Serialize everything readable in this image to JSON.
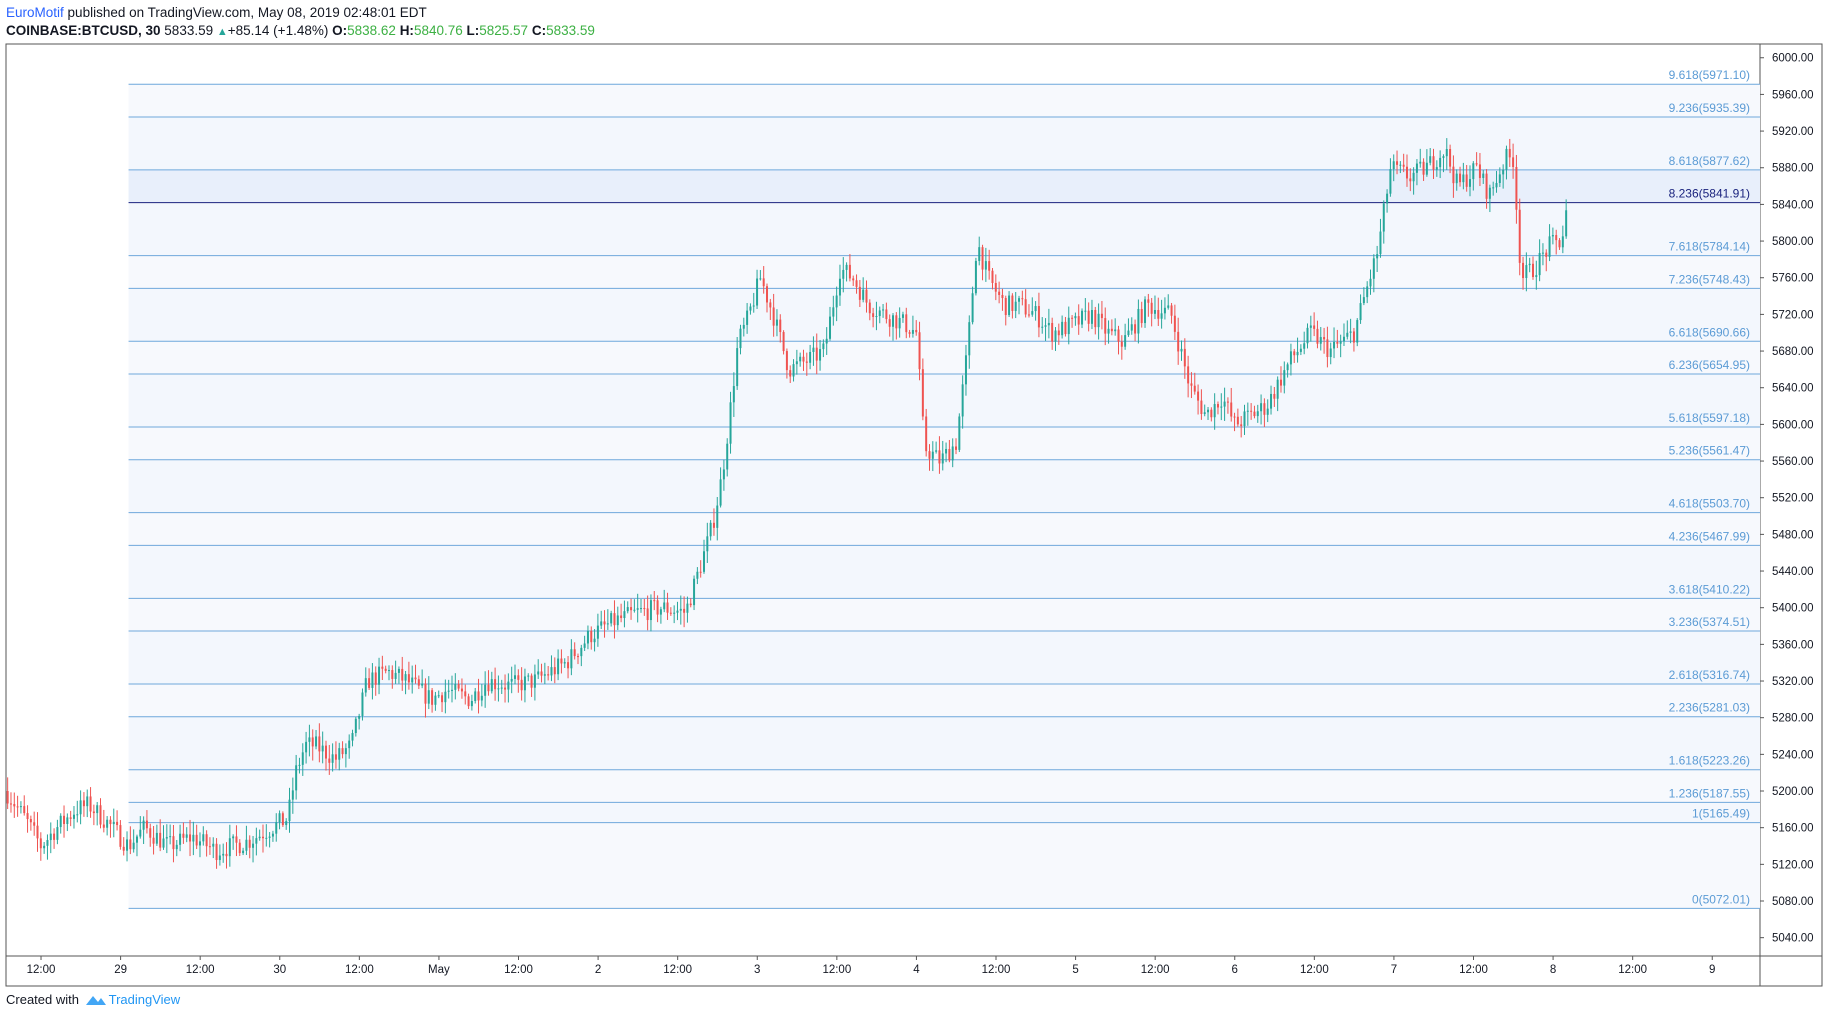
{
  "header": {
    "author": "EuroMotif",
    "published": "published on TradingView.com, May 08, 2019 02:48:01 EDT",
    "symbol": "COINBASE:BTCUSD, 30",
    "last": "5833.59",
    "change": "+85.14 (+1.48%)",
    "o_label": "O:",
    "o_value": "5838.62",
    "h_label": "H:",
    "h_value": "5840.76",
    "l_label": "L:",
    "l_value": "5825.57",
    "c_label": "C:",
    "c_value": "5833.59"
  },
  "footer": {
    "created_with": "Created with",
    "brand": "TradingView"
  },
  "colors": {
    "up": "#26a69a",
    "down": "#ef5350",
    "fib_line": "#6fa8dc",
    "fib_label": "#5b9bd5",
    "highlight": "#1a237e",
    "axis": "#131722"
  },
  "chart_data": {
    "type": "candlestick",
    "y_ticks": [
      5040,
      5080,
      5120,
      5160,
      5200,
      5240,
      5280,
      5320,
      5360,
      5400,
      5440,
      5480,
      5520,
      5560,
      5600,
      5640,
      5680,
      5720,
      5760,
      5800,
      5840,
      5880,
      5920,
      5960,
      6000
    ],
    "y_tick_labels": [
      "5040.00",
      "5080.00",
      "5120.00",
      "5160.00",
      "5200.00",
      "5240.00",
      "5280.00",
      "5320.00",
      "5360.00",
      "5400.00",
      "5440.00",
      "5480.00",
      "5520.00",
      "5560.00",
      "5600.00",
      "5640.00",
      "5680.00",
      "5720.00",
      "5760.00",
      "5800.00",
      "5840.00",
      "5880.00",
      "5920.00",
      "5960.00",
      "6000.00"
    ],
    "ylim": [
      5020,
      6015
    ],
    "x_ticks": [
      {
        "label": "12:00",
        "t": 0.5
      },
      {
        "label": "29",
        "t": 1.0
      },
      {
        "label": "12:00",
        "t": 1.5
      },
      {
        "label": "30",
        "t": 2.0
      },
      {
        "label": "12:00",
        "t": 2.5
      },
      {
        "label": "May",
        "t": 3.0
      },
      {
        "label": "12:00",
        "t": 3.5
      },
      {
        "label": "2",
        "t": 4.0
      },
      {
        "label": "12:00",
        "t": 4.5
      },
      {
        "label": "3",
        "t": 5.0
      },
      {
        "label": "12:00",
        "t": 5.5
      },
      {
        "label": "4",
        "t": 6.0
      },
      {
        "label": "12:00",
        "t": 6.5
      },
      {
        "label": "5",
        "t": 7.0
      },
      {
        "label": "12:00",
        "t": 7.5
      },
      {
        "label": "6",
        "t": 8.0
      },
      {
        "label": "12:00",
        "t": 8.5
      },
      {
        "label": "7",
        "t": 9.0
      },
      {
        "label": "12:00",
        "t": 9.5
      },
      {
        "label": "8",
        "t": 10.0
      },
      {
        "label": "12:00",
        "t": 10.5
      },
      {
        "label": "9",
        "t": 11.0
      }
    ],
    "xlim": [
      0.28,
      11.3
    ],
    "fib": {
      "t_start": 1.05,
      "levels": [
        {
          "label": "9.618(5971.10)",
          "price": 5971.1
        },
        {
          "label": "9.236(5935.39)",
          "price": 5935.39
        },
        {
          "label": "8.618(5877.62)",
          "price": 5877.62
        },
        {
          "label": "8.236(5841.91)",
          "price": 5841.91,
          "highlight": true
        },
        {
          "label": "7.618(5784.14)",
          "price": 5784.14
        },
        {
          "label": "7.236(5748.43)",
          "price": 5748.43
        },
        {
          "label": "6.618(5690.66)",
          "price": 5690.66
        },
        {
          "label": "6.236(5654.95)",
          "price": 5654.95
        },
        {
          "label": "5.618(5597.18)",
          "price": 5597.18
        },
        {
          "label": "5.236(5561.47)",
          "price": 5561.47
        },
        {
          "label": "4.618(5503.70)",
          "price": 5503.7
        },
        {
          "label": "4.236(5467.99)",
          "price": 5467.99
        },
        {
          "label": "3.618(5410.22)",
          "price": 5410.22
        },
        {
          "label": "3.236(5374.51)",
          "price": 5374.51
        },
        {
          "label": "2.618(5316.74)",
          "price": 5316.74
        },
        {
          "label": "2.236(5281.03)",
          "price": 5281.03
        },
        {
          "label": "1.618(5223.26)",
          "price": 5223.26
        },
        {
          "label": "1.236(5187.55)",
          "price": 5187.55
        },
        {
          "label": "1(5165.49)",
          "price": 5165.49
        },
        {
          "label": "0(5072.01)",
          "price": 5072.01
        }
      ]
    },
    "anchors": [
      [
        0.28,
        5200
      ],
      [
        0.4,
        5170
      ],
      [
        0.5,
        5140
      ],
      [
        0.6,
        5160
      ],
      [
        0.72,
        5180
      ],
      [
        0.8,
        5185
      ],
      [
        0.92,
        5165
      ],
      [
        1.05,
        5140
      ],
      [
        1.15,
        5160
      ],
      [
        1.3,
        5140
      ],
      [
        1.45,
        5150
      ],
      [
        1.6,
        5135
      ],
      [
        1.8,
        5145
      ],
      [
        1.95,
        5160
      ],
      [
        2.05,
        5170
      ],
      [
        2.1,
        5220
      ],
      [
        2.16,
        5250
      ],
      [
        2.22,
        5250
      ],
      [
        2.35,
        5235
      ],
      [
        2.45,
        5250
      ],
      [
        2.55,
        5320
      ],
      [
        2.68,
        5330
      ],
      [
        2.8,
        5320
      ],
      [
        2.95,
        5300
      ],
      [
        3.05,
        5310
      ],
      [
        3.2,
        5300
      ],
      [
        3.3,
        5320
      ],
      [
        3.45,
        5315
      ],
      [
        3.6,
        5320
      ],
      [
        3.8,
        5340
      ],
      [
        3.95,
        5370
      ],
      [
        4.1,
        5385
      ],
      [
        4.25,
        5395
      ],
      [
        4.4,
        5400
      ],
      [
        4.55,
        5395
      ],
      [
        4.65,
        5450
      ],
      [
        4.72,
        5490
      ],
      [
        4.78,
        5545
      ],
      [
        4.82,
        5600
      ],
      [
        4.88,
        5690
      ],
      [
        4.93,
        5710
      ],
      [
        5.02,
        5760
      ],
      [
        5.1,
        5720
      ],
      [
        5.2,
        5660
      ],
      [
        5.32,
        5670
      ],
      [
        5.42,
        5680
      ],
      [
        5.52,
        5770
      ],
      [
        5.6,
        5760
      ],
      [
        5.7,
        5730
      ],
      [
        5.8,
        5720
      ],
      [
        5.92,
        5710
      ],
      [
        6.0,
        5700
      ],
      [
        6.05,
        5575
      ],
      [
        6.15,
        5560
      ],
      [
        6.25,
        5580
      ],
      [
        6.32,
        5680
      ],
      [
        6.38,
        5800
      ],
      [
        6.45,
        5760
      ],
      [
        6.55,
        5730
      ],
      [
        6.65,
        5730
      ],
      [
        6.75,
        5720
      ],
      [
        6.85,
        5700
      ],
      [
        7.0,
        5710
      ],
      [
        7.1,
        5720
      ],
      [
        7.2,
        5700
      ],
      [
        7.3,
        5690
      ],
      [
        7.45,
        5730
      ],
      [
        7.6,
        5720
      ],
      [
        7.72,
        5640
      ],
      [
        7.82,
        5610
      ],
      [
        7.92,
        5630
      ],
      [
        8.0,
        5600
      ],
      [
        8.1,
        5610
      ],
      [
        8.2,
        5620
      ],
      [
        8.35,
        5670
      ],
      [
        8.48,
        5700
      ],
      [
        8.6,
        5680
      ],
      [
        8.75,
        5700
      ],
      [
        8.9,
        5790
      ],
      [
        8.98,
        5880
      ],
      [
        9.1,
        5870
      ],
      [
        9.2,
        5880
      ],
      [
        9.32,
        5900
      ],
      [
        9.4,
        5860
      ],
      [
        9.52,
        5880
      ],
      [
        9.6,
        5850
      ],
      [
        9.7,
        5890
      ],
      [
        9.75,
        5890
      ],
      [
        9.8,
        5760
      ],
      [
        9.88,
        5770
      ],
      [
        9.98,
        5795
      ],
      [
        10.05,
        5800
      ],
      [
        10.1,
        5833.59
      ]
    ]
  }
}
